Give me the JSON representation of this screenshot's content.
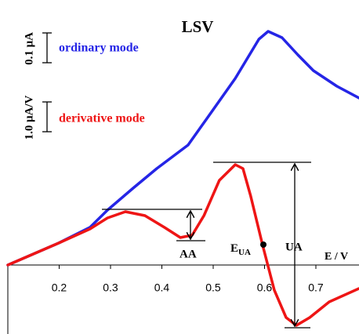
{
  "chart_data": {
    "type": "line",
    "title": "LSV",
    "x_label": "E / V",
    "xlim": [
      0.1,
      0.784
    ],
    "xticks": [
      0.2,
      0.3,
      0.4,
      0.5,
      0.6,
      0.7
    ],
    "ylim": [
      -0.88,
      3.38
    ],
    "annotations": {
      "ordinary_scale": "0.1 μA",
      "derivative_scale": "1.0 μA/V",
      "aa": "AA",
      "ua": "UA",
      "e_ua": {
        "main": "E",
        "sub": "UA"
      }
    },
    "series": [
      {
        "name": "ordinary mode",
        "color": "#2525e6",
        "x": [
          0.1,
          0.146,
          0.199,
          0.26,
          0.294,
          0.344,
          0.39,
          0.451,
          0.489,
          0.543,
          0.589,
          0.607,
          0.634,
          0.665,
          0.695,
          0.741,
          0.784
        ],
        "values": [
          0,
          0.13,
          0.28,
          0.48,
          0.7,
          0.98,
          1.23,
          1.53,
          1.88,
          2.38,
          2.88,
          2.98,
          2.9,
          2.68,
          2.48,
          2.28,
          2.13
        ]
      },
      {
        "name": "derivative mode",
        "color": "#ee1515",
        "x": [
          0.1,
          0.146,
          0.199,
          0.26,
          0.294,
          0.329,
          0.367,
          0.405,
          0.436,
          0.459,
          0.482,
          0.512,
          0.543,
          0.558,
          0.573,
          0.596,
          0.619,
          0.642,
          0.662,
          0.688,
          0.726,
          0.784
        ],
        "values": [
          0,
          0.13,
          0.28,
          0.46,
          0.6,
          0.68,
          0.63,
          0.48,
          0.35,
          0.38,
          0.63,
          1.08,
          1.28,
          1.23,
          0.88,
          0.26,
          -0.32,
          -0.67,
          -0.77,
          -0.67,
          -0.47,
          -0.3
        ]
      }
    ]
  }
}
